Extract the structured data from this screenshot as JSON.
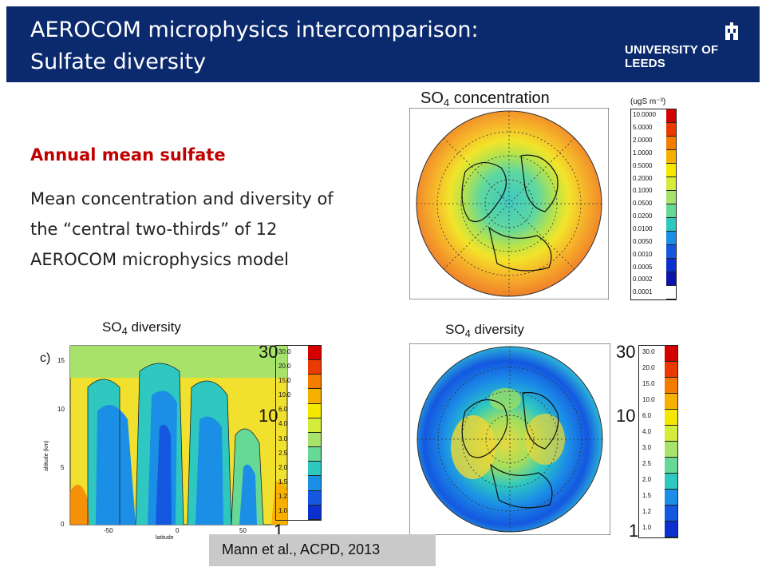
{
  "header": {
    "title": "AEROCOM microphysics intercomparison:\nSulfate diversity",
    "logo_text": "UNIVERSITY OF LEEDS",
    "background": "#0b2a6e"
  },
  "text": {
    "heading": "Annual mean sulfate",
    "body": "Mean concentration and diversity of the “central two-thirds” of 12 AEROCOM microphysics model"
  },
  "figures": {
    "concentration": {
      "title_main": "SO",
      "title_sub": "4",
      "title_rest": " concentration",
      "unit": "(ugS m⁻³)",
      "ticks": [
        "10.0000",
        "5.0000",
        "2.0000",
        "1.0000",
        "0.5000",
        "0.2000",
        "0.1000",
        "0.0500",
        "0.0200",
        "0.0100",
        "0.0050",
        "0.0010",
        "0.0005",
        "0.0002",
        "0.0001"
      ]
    },
    "diversity_polar": {
      "title_main": "SO",
      "title_sub": "4",
      "title_rest": " diversity",
      "big_labels": [
        "30",
        "10",
        "1"
      ],
      "ticks": [
        "30.0",
        "20.0",
        "15.0",
        "10.0",
        "6.0",
        "4.0",
        "3.0",
        "2.5",
        "2.0",
        "1.5",
        "1.2",
        "1.0"
      ]
    },
    "diversity_zonal": {
      "title_main": "SO",
      "title_sub": "4",
      "title_rest": " diversity",
      "panel_label": "c)",
      "ylabel": "altitude (km)",
      "xlabel": "latitude",
      "yticks": [
        "15",
        "10",
        "5",
        "0"
      ],
      "xticks": [
        "-50",
        "0",
        "50"
      ],
      "big_labels": [
        "30",
        "10",
        "1"
      ],
      "ticks": [
        "30.0",
        "20.0",
        "15.0",
        "10.0",
        "6.0",
        "4.0",
        "3.0",
        "2.5",
        "2.0",
        "1.5",
        "1.2",
        "1.0"
      ]
    }
  },
  "colorbar_colors": [
    "#d40000",
    "#ea3a00",
    "#f47d00",
    "#f7b000",
    "#f5e800",
    "#d6ec3a",
    "#a7e36a",
    "#66d996",
    "#2ec8c0",
    "#1b8ee6",
    "#1458e0",
    "#0c2fcf",
    "#0a14a8",
    "#ffffff"
  ],
  "citation": "Mann et al., ACPD, 2013"
}
